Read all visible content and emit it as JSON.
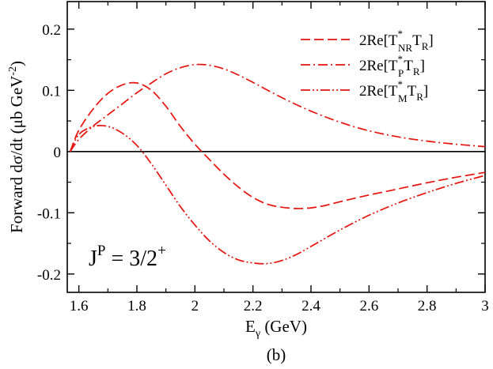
{
  "chart_data": {
    "type": "line",
    "xlabel": {
      "base": "E",
      "sub": "γ",
      "rest": " (GeV)"
    },
    "ylabel": "Forward dσ/dt (μb GeV",
    "ylabel_sup": "-2",
    "ylabel_close": ")",
    "caption": "(b)",
    "xlim": [
      1.56,
      3.0
    ],
    "ylim": [
      -0.23,
      0.245
    ],
    "xticks": [
      1.6,
      1.8,
      2.0,
      2.2,
      2.4,
      2.6,
      2.8,
      3.0
    ],
    "xtick_labels": [
      "1.6",
      "1.8",
      "2",
      "2.2",
      "2.4",
      "2.6",
      "2.8",
      "3"
    ],
    "yticks": [
      -0.2,
      -0.1,
      0.0,
      0.1,
      0.2
    ],
    "ytick_labels": [
      "-0.2",
      "-0.1",
      "0",
      "0.1",
      "0.2"
    ],
    "annotation": {
      "base": "J",
      "sup1": "P",
      "mid": " = 3/2",
      "sup2": "+"
    },
    "legend_position": "top-right",
    "colors": {
      "series": "#e8120c",
      "zero_line": "#000000"
    },
    "series": [
      {
        "legend": {
          "pre": "2Re[T",
          "sup": "*",
          "sub": "NR",
          "post": "T",
          "post_sub": "R",
          "close": "]"
        },
        "dash": "dashed",
        "x": [
          1.57,
          1.6,
          1.65,
          1.7,
          1.75,
          1.8,
          1.85,
          1.9,
          1.95,
          2.0,
          2.05,
          2.1,
          2.15,
          2.2,
          2.25,
          2.3,
          2.35,
          2.4,
          2.45,
          2.5,
          2.6,
          2.7,
          2.8,
          2.9,
          3.0
        ],
        "y": [
          0.0,
          0.035,
          0.07,
          0.095,
          0.109,
          0.112,
          0.1,
          0.074,
          0.041,
          0.012,
          -0.013,
          -0.037,
          -0.058,
          -0.075,
          -0.086,
          -0.091,
          -0.093,
          -0.092,
          -0.088,
          -0.082,
          -0.071,
          -0.061,
          -0.051,
          -0.042,
          -0.034
        ]
      },
      {
        "legend": {
          "pre": "2Re[T",
          "sup": "*",
          "sub": "P",
          "post": "T",
          "post_sub": "R",
          "close": "]"
        },
        "dash": "dash-dot",
        "x": [
          1.57,
          1.6,
          1.65,
          1.7,
          1.75,
          1.8,
          1.85,
          1.9,
          1.95,
          2.0,
          2.05,
          2.1,
          2.15,
          2.2,
          2.3,
          2.4,
          2.5,
          2.6,
          2.7,
          2.8,
          2.9,
          3.0
        ],
        "y": [
          0.0,
          0.02,
          0.042,
          0.06,
          0.078,
          0.096,
          0.112,
          0.127,
          0.137,
          0.142,
          0.141,
          0.135,
          0.125,
          0.113,
          0.088,
          0.066,
          0.048,
          0.034,
          0.024,
          0.017,
          0.012,
          0.008
        ]
      },
      {
        "legend": {
          "pre": "2Re[T",
          "sup": "*",
          "sub": "M",
          "post": "T",
          "post_sub": "R",
          "close": "]"
        },
        "dash": "dash-dot-dot",
        "x": [
          1.57,
          1.6,
          1.65,
          1.7,
          1.75,
          1.8,
          1.85,
          1.9,
          1.95,
          2.0,
          2.05,
          2.1,
          2.15,
          2.2,
          2.25,
          2.3,
          2.35,
          2.4,
          2.5,
          2.6,
          2.7,
          2.8,
          2.9,
          3.0
        ],
        "y": [
          0.0,
          0.028,
          0.041,
          0.041,
          0.03,
          0.01,
          -0.02,
          -0.055,
          -0.09,
          -0.12,
          -0.146,
          -0.165,
          -0.177,
          -0.182,
          -0.183,
          -0.178,
          -0.168,
          -0.155,
          -0.128,
          -0.104,
          -0.084,
          -0.067,
          -0.052,
          -0.039
        ]
      }
    ]
  }
}
